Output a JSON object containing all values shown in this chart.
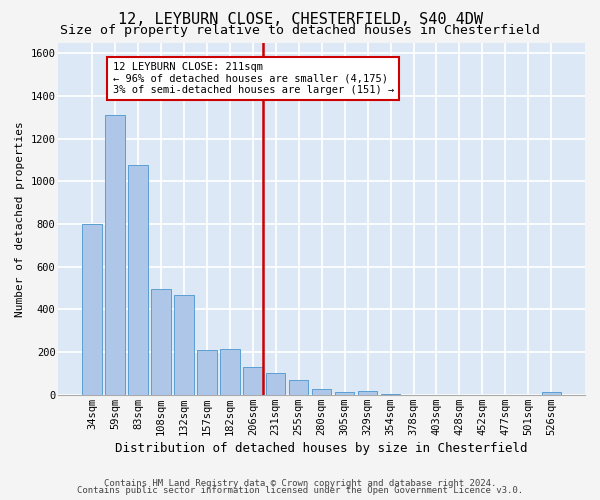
{
  "title1": "12, LEYBURN CLOSE, CHESTERFIELD, S40 4DW",
  "title2": "Size of property relative to detached houses in Chesterfield",
  "xlabel": "Distribution of detached houses by size in Chesterfield",
  "ylabel": "Number of detached properties",
  "footer1": "Contains HM Land Registry data © Crown copyright and database right 2024.",
  "footer2": "Contains public sector information licensed under the Open Government Licence v3.0.",
  "annotation_line1": "12 LEYBURN CLOSE: 211sqm",
  "annotation_line2": "← 96% of detached houses are smaller (4,175)",
  "annotation_line3": "3% of semi-detached houses are larger (151) →",
  "bar_color": "#aec6e8",
  "bar_edge_color": "#5a9fd4",
  "ref_color": "#cc0000",
  "categories": [
    "34sqm",
    "59sqm",
    "83sqm",
    "108sqm",
    "132sqm",
    "157sqm",
    "182sqm",
    "206sqm",
    "231sqm",
    "255sqm",
    "280sqm",
    "305sqm",
    "329sqm",
    "354sqm",
    "378sqm",
    "403sqm",
    "428sqm",
    "452sqm",
    "477sqm",
    "501sqm",
    "526sqm"
  ],
  "values": [
    800,
    1310,
    1075,
    495,
    465,
    210,
    215,
    130,
    100,
    70,
    25,
    15,
    20,
    5,
    0,
    0,
    0,
    0,
    0,
    0,
    15
  ],
  "ylim": [
    0,
    1650
  ],
  "yticks": [
    0,
    200,
    400,
    600,
    800,
    1000,
    1200,
    1400,
    1600
  ],
  "bg_color": "#dce8f5",
  "grid_color": "#ffffff",
  "fig_bg": "#f4f4f4",
  "ref_bar_index": 7,
  "title1_fontsize": 11,
  "title2_fontsize": 9.5,
  "xlabel_fontsize": 9,
  "ylabel_fontsize": 8,
  "footer_fontsize": 6.5,
  "tick_fontsize": 7.5,
  "ann_fontsize": 7.5
}
